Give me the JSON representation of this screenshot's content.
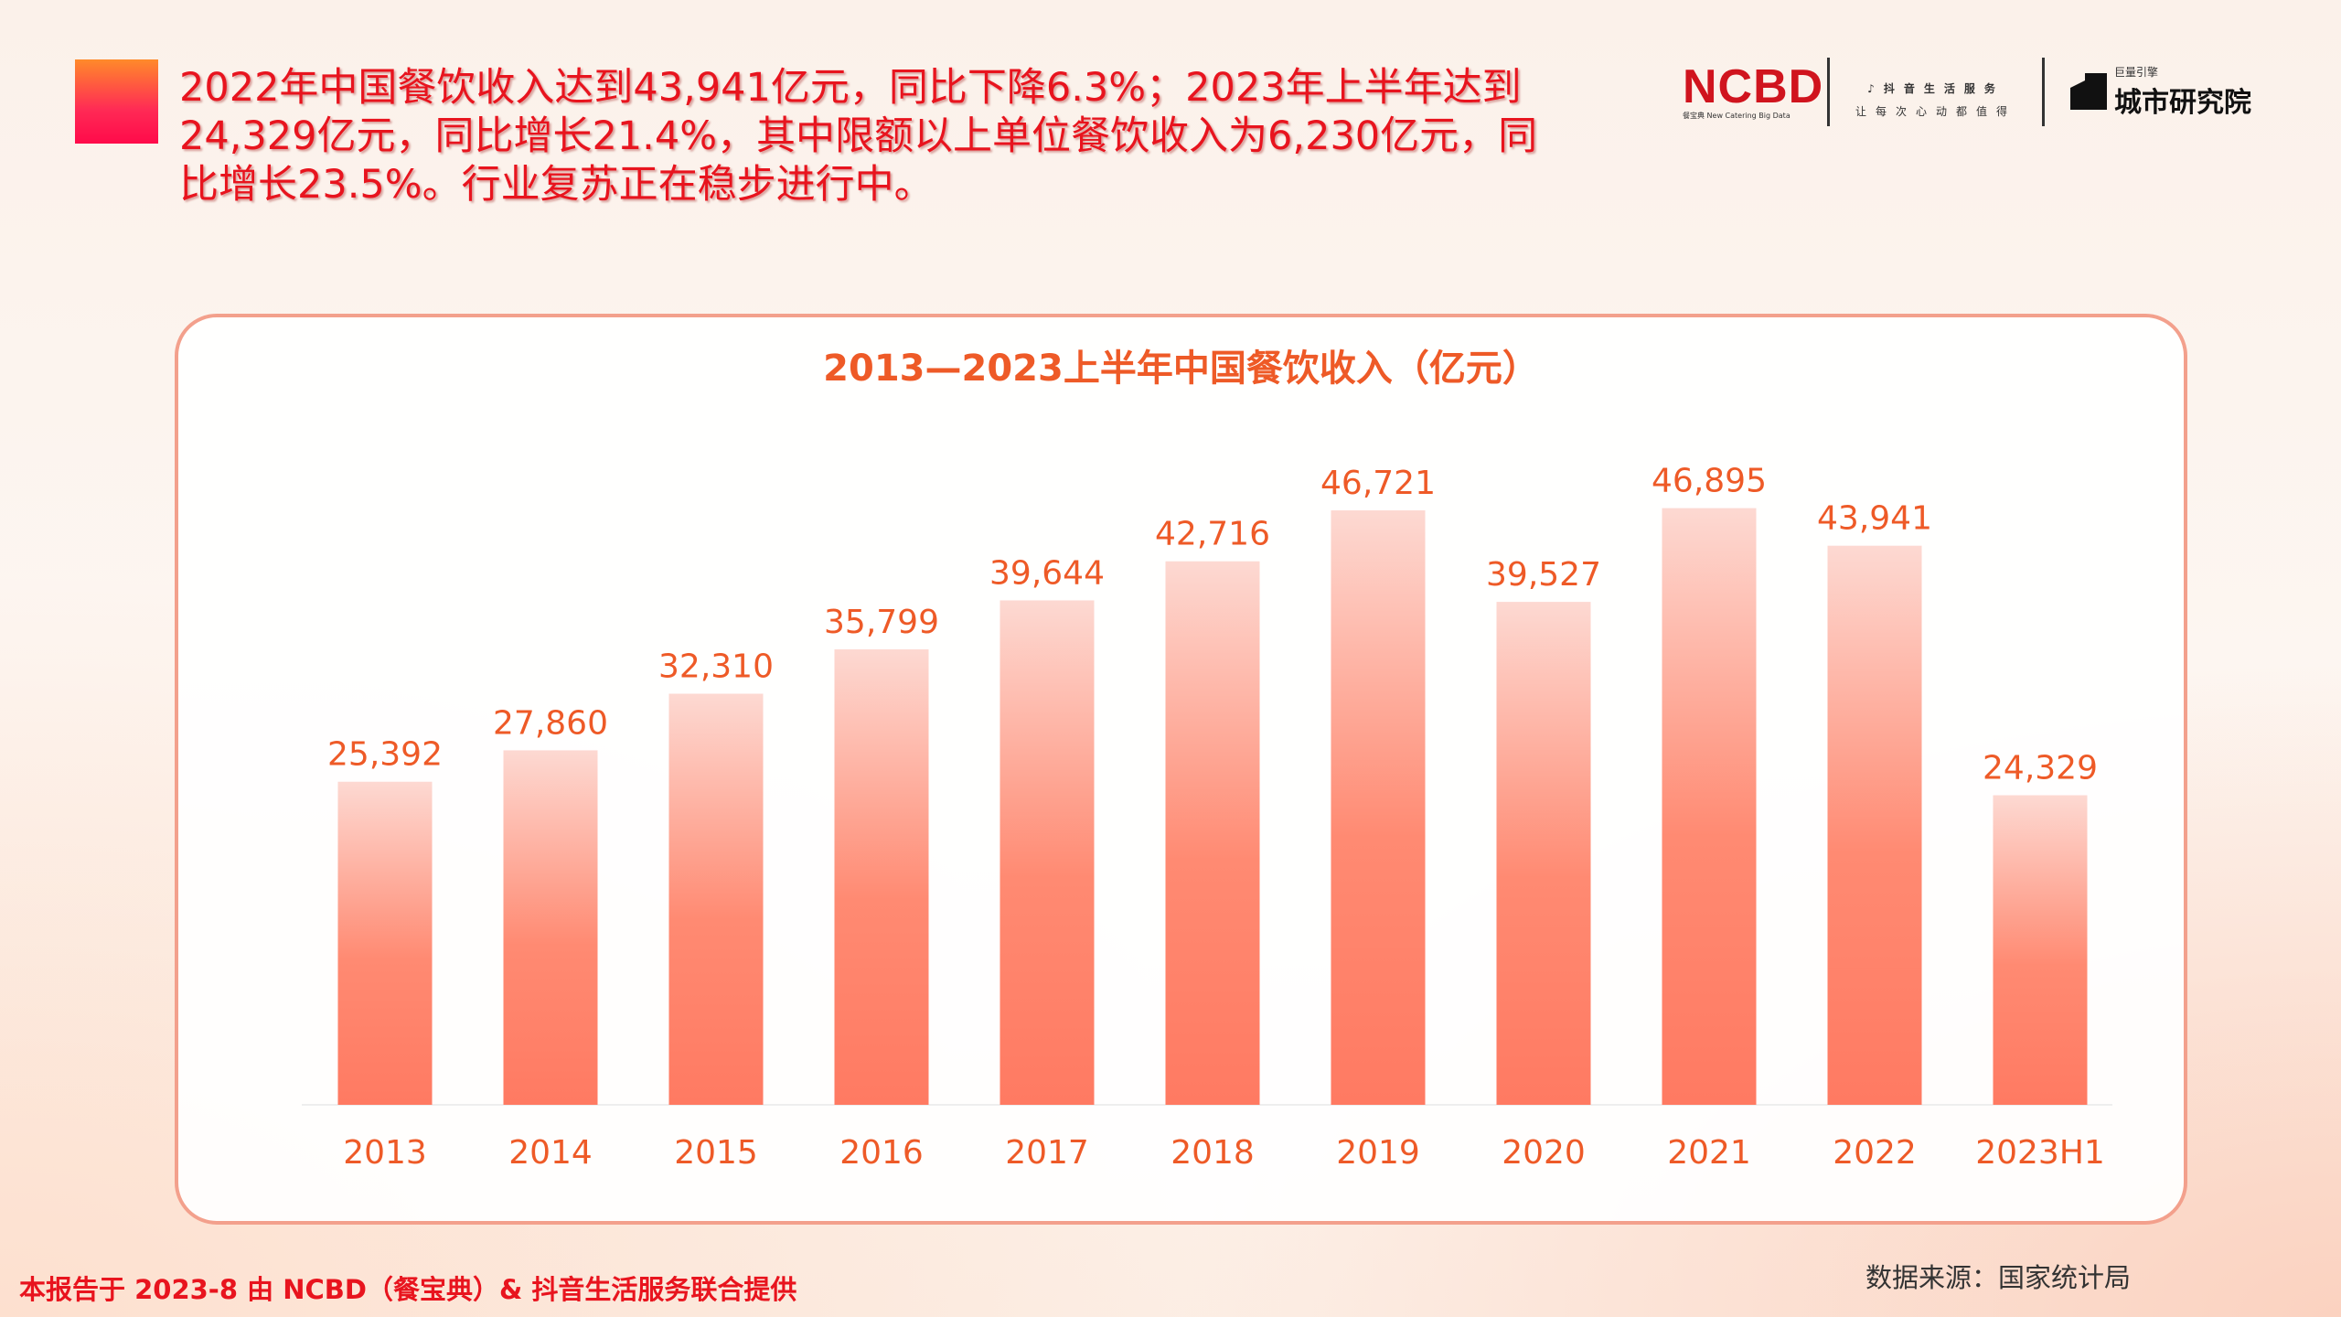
{
  "headline": "2022年中国餐饮收入达到43,941亿元，同比下降6.3%；2023年上半年达到24,329亿元，同比增长21.4%，其中限额以上单位餐饮收入为6,230亿元，同比增长23.5%。行业复苏正在稳步进行中。",
  "logos": {
    "ncbd": "NCBD",
    "ncbd_sub": "餐宝典 New Catering Big Data",
    "douyin": "抖音生活服务",
    "douyin_sub": "让每次心动都值得",
    "jl_small": "巨量引擎",
    "jl": "城市研究院"
  },
  "colors": {
    "accent": "#e8141e",
    "bar_top": "#fdd9d2",
    "bar_bottom": "#ff7a62",
    "label": "#ee5a27"
  },
  "chart_data": {
    "type": "bar",
    "title": "2013—2023上半年中国餐饮收入（亿元）",
    "categories": [
      "2013",
      "2014",
      "2015",
      "2016",
      "2017",
      "2018",
      "2019",
      "2020",
      "2021",
      "2022",
      "2023H1"
    ],
    "values": [
      25392,
      27860,
      32310,
      35799,
      39644,
      42716,
      46721,
      39527,
      46895,
      43941,
      24329
    ],
    "data_labels": [
      "25,392",
      "27,860",
      "32,310",
      "35,799",
      "39,644",
      "42,716",
      "46,721",
      "39,527",
      "46,895",
      "43,941",
      "24,329"
    ],
    "xlabel": "",
    "ylabel": "",
    "grid": false,
    "legend": "none"
  },
  "footer": {
    "left": "本报告于 2023-8 由 NCBD（餐宝典）& 抖音生活服务联合提供",
    "right": "数据来源：国家统计局"
  }
}
